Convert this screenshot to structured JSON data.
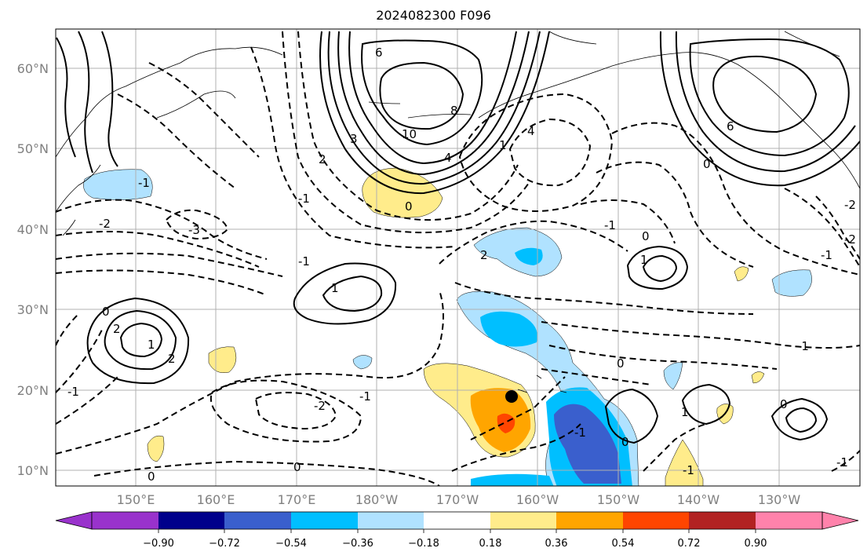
{
  "title": "2024082300 F096",
  "lat_labels": [
    "60°N",
    "50°N",
    "40°N",
    "30°N",
    "20°N",
    "10°N"
  ],
  "lon_labels": [
    "150°E",
    "160°E",
    "170°E",
    "180°W",
    "170°W",
    "160°W",
    "150°W",
    "140°W",
    "130°W"
  ],
  "colorbar": {
    "labels": [
      "−0.90",
      "−0.72",
      "−0.54",
      "−0.36",
      "−0.18",
      "0.18",
      "0.36",
      "0.54",
      "0.72",
      "0.90"
    ],
    "colors": [
      "#9932cc",
      "#00008b",
      "#3a5fcd",
      "#00bfff",
      "#b0e2ff",
      "#ffffff",
      "#ffec8b",
      "#ffa500",
      "#ff4500",
      "#b22222",
      "#ff82ab"
    ]
  },
  "contour_labels": [
    "6",
    "8",
    "10",
    "4",
    "3",
    "2",
    "0",
    "-1",
    "-2",
    "-3",
    "-1",
    "1",
    "0",
    "2",
    "-1",
    "-2",
    "-1",
    "0",
    "0",
    "-1",
    "2",
    "1",
    "4",
    "6",
    "0",
    "-2",
    "-1",
    "1",
    "0",
    "1",
    "2",
    "-1",
    "-1",
    "-1",
    "0",
    "-2",
    "-1",
    "0",
    "1",
    "-1",
    "0"
  ],
  "marker": {
    "label": "",
    "color": "#000000"
  }
}
